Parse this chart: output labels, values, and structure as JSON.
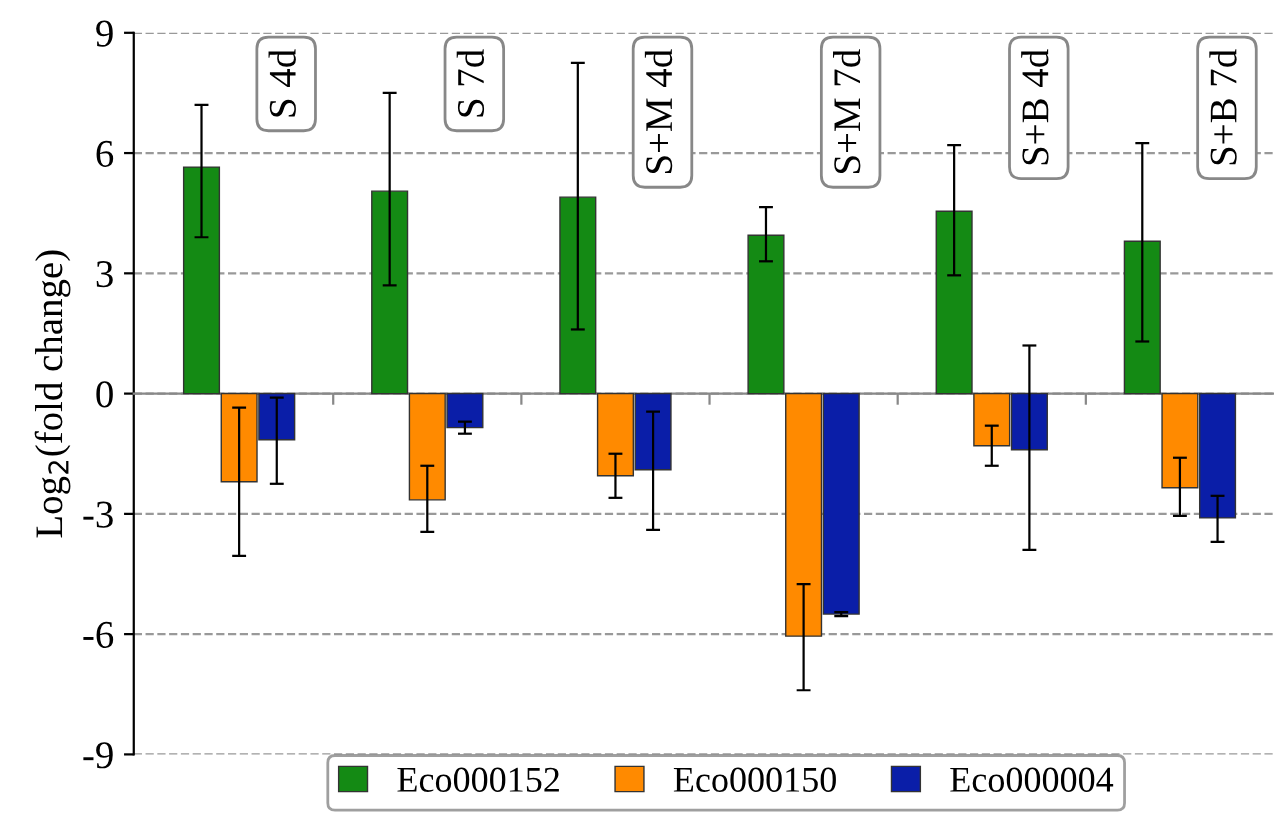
{
  "chart_data": {
    "type": "bar",
    "ylabel": "Log$_{2}$(fold change)",
    "categories": [
      "S 4d",
      "S 7d",
      "S+M 4d",
      "S+M 7d",
      "S+B 4d",
      "S+B 7d"
    ],
    "series": [
      {
        "name": "Eco000152",
        "color": "#148a14",
        "values": [
          5.65,
          5.05,
          4.9,
          3.95,
          4.55,
          3.8
        ],
        "errors": [
          [
            3.9,
            7.2
          ],
          [
            2.7,
            7.5
          ],
          [
            1.6,
            8.25
          ],
          [
            3.3,
            4.65
          ],
          [
            2.95,
            6.2
          ],
          [
            1.3,
            6.25
          ]
        ]
      },
      {
        "name": "Eco000150",
        "color": "#ff8a00",
        "values": [
          -2.2,
          -2.65,
          -2.05,
          -6.05,
          -1.3,
          -2.35
        ],
        "errors": [
          [
            -4.05,
            -0.35
          ],
          [
            -3.45,
            -1.8
          ],
          [
            -2.6,
            -1.5
          ],
          [
            -7.4,
            -4.75
          ],
          [
            -1.8,
            -0.8
          ],
          [
            -3.05,
            -1.6
          ]
        ]
      },
      {
        "name": "Eco000004",
        "color": "#0a1ea8",
        "values": [
          -1.15,
          -0.85,
          -1.9,
          -5.5,
          -1.4,
          -3.1
        ],
        "errors": [
          [
            -2.25,
            -0.1
          ],
          [
            -1.0,
            -0.7
          ],
          [
            -3.4,
            -0.45
          ],
          [
            -5.55,
            -5.45
          ],
          [
            -3.9,
            1.2
          ],
          [
            -3.7,
            -2.55
          ]
        ]
      }
    ],
    "ylim": [
      -9,
      9
    ],
    "yticks": [
      -9,
      -6,
      -3,
      0,
      3,
      6,
      9
    ],
    "grid": "y",
    "legend": "bottom"
  }
}
